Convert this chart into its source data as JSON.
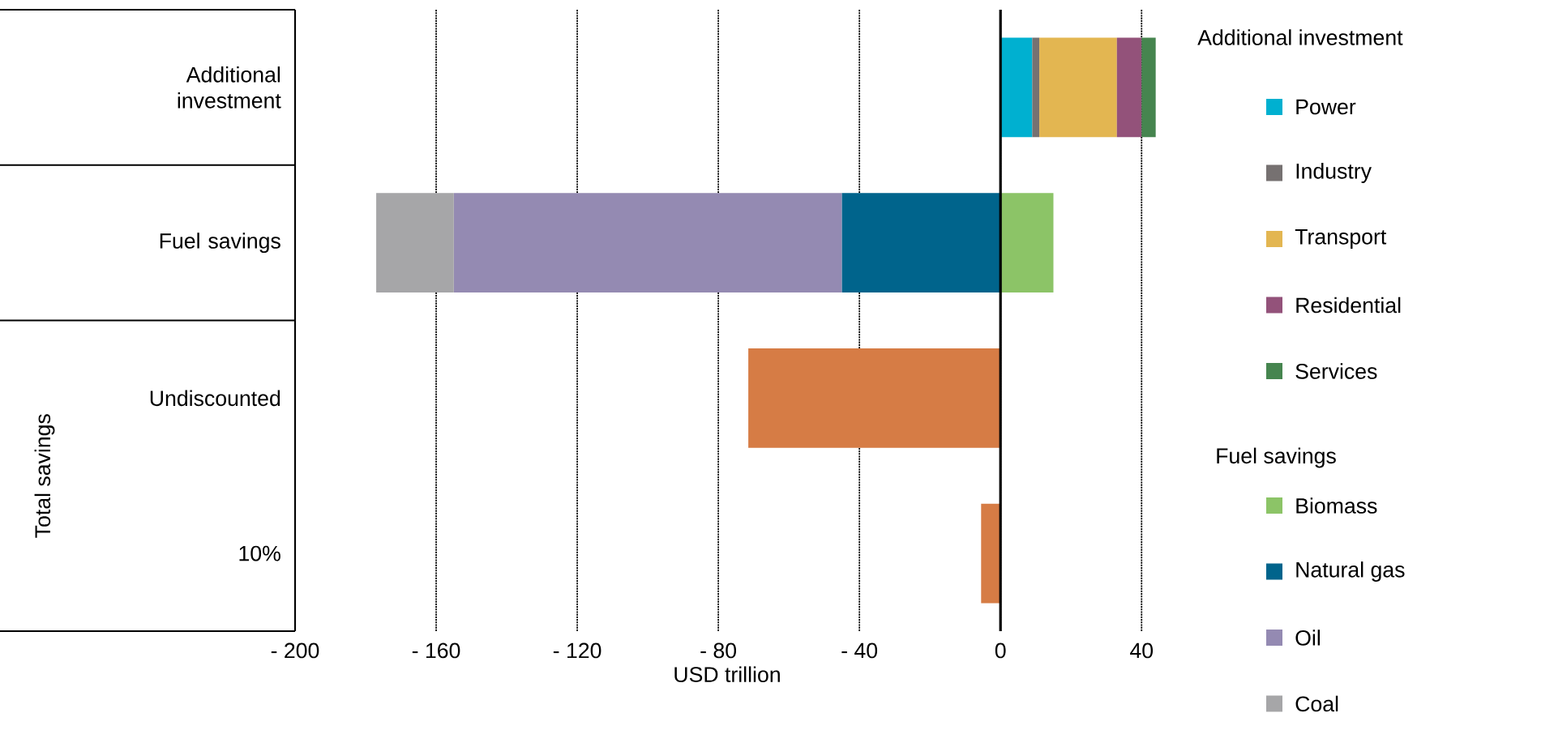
{
  "chart_data": {
    "type": "bar",
    "orientation": "horizontal",
    "stacked": true,
    "xlabel": "USD trillion",
    "legend_title": "Additional investment",
    "legend": "right",
    "grid": "x",
    "annotations": [
      "Total savings",
      "Fuel savings"
    ],
    "ref_lines": [
      {
        "axis": "x",
        "value": 0,
        "color": "#000000",
        "line_style": "solid"
      }
    ],
    "categories": [
      "Additional investment",
      "Fuel savings",
      "Undiscounted",
      "10%"
    ],
    "xlim": [
      -200,
      45
    ],
    "xticks": [
      {
        "value": -200,
        "label": "- 200"
      },
      {
        "value": -160,
        "label": "- 160"
      },
      {
        "value": -120,
        "label": "- 120"
      },
      {
        "value": -80,
        "label": "- 80"
      },
      {
        "value": -40,
        "label": "- 40"
      },
      0,
      40
    ],
    "series": [
      {
        "name": "Power",
        "color": "#00b0d0",
        "values": [
          9,
          null,
          null,
          null
        ]
      },
      {
        "name": "Industry",
        "color": "#767171",
        "values": [
          2,
          null,
          null,
          null
        ]
      },
      {
        "name": "Transport",
        "color": "#e3b651",
        "values": [
          22,
          null,
          null,
          null
        ]
      },
      {
        "name": "Residential",
        "color": "#93527a",
        "values": [
          7,
          null,
          null,
          null
        ]
      },
      {
        "name": "Services",
        "color": "#46854f",
        "values": [
          4,
          null,
          null,
          null
        ]
      },
      {
        "name": "Biomass",
        "color": "#8cc467",
        "values": [
          null,
          15,
          null,
          null
        ]
      },
      {
        "name": "Natural gas",
        "color": "#00648c",
        "values": [
          null,
          -45,
          null,
          null
        ]
      },
      {
        "name": "Oil",
        "color": "#948ab2",
        "values": [
          null,
          -110,
          null,
          null
        ]
      },
      {
        "name": "Coal",
        "color": "#a6a6a8",
        "values": [
          null,
          -22,
          null,
          null
        ]
      },
      {
        "color": "#d67c45",
        "values": [
          null,
          null,
          -71.5,
          -5.5
        ]
      }
    ]
  }
}
